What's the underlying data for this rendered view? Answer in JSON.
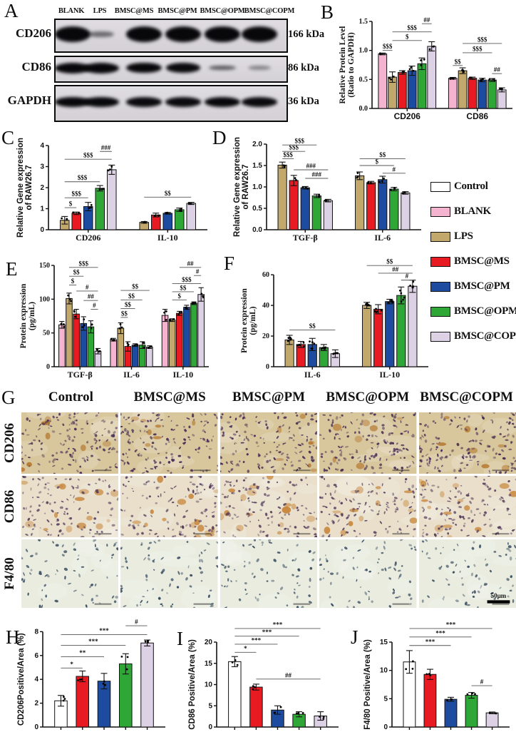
{
  "palette": {
    "Control": "#ffffff",
    "BLANK": "#f4b3ce",
    "LPS": "#c2a86a",
    "BMSC@MS": "#e81b22",
    "BMSC@PM": "#1d4b9f",
    "BMSC@OPM": "#2ea737",
    "BMSC@COPM": "#ddd1e5"
  },
  "blot": {
    "panel": "A",
    "lanes": [
      "BLANK",
      "LPS",
      "BMSC@MS",
      "BMSC@PM",
      "BMSC@OPM",
      "BMSC@COPM"
    ],
    "rows": [
      {
        "label": "CD206",
        "kda": "166 kDa",
        "bands": [
          1,
          0.35,
          1,
          1,
          0.97,
          1.02
        ]
      },
      {
        "label": "CD86",
        "kda": "86 kDa",
        "bands": [
          1,
          1,
          0.97,
          0.9,
          0.45,
          0.22
        ]
      },
      {
        "label": "GAPDH",
        "kda": "36 kDa",
        "bands": [
          0.95,
          0.93,
          0.9,
          0.9,
          0.93,
          0.9
        ]
      }
    ]
  },
  "legend": {
    "items": [
      "Control",
      "BLANK",
      "LPS",
      "BMSC@MS",
      "BMSC@PM",
      "BMSC@OPM",
      "BMSC@COPM"
    ]
  },
  "histology": {
    "panel": "G",
    "columns": [
      "Control",
      "BMSC@MS",
      "BMSC@PM",
      "BMSC@OPM",
      "BMSC@COPM"
    ],
    "rows": [
      {
        "label": "CD206",
        "bg": "#d8c69c",
        "dot": "#4a3156",
        "accent": "#b06d20",
        "dots": 150,
        "accents": 7
      },
      {
        "label": "CD86",
        "bg": "#e9dfca",
        "dot": "#584060",
        "accent": "#c0731d",
        "dots": 115,
        "accents": 15
      },
      {
        "label": "F4/80",
        "bg": "#e9ecdf",
        "dot": "#3d5064",
        "accent": "#9fb4be",
        "dots": 70,
        "accents": 0
      }
    ],
    "scale_label": "50µm"
  },
  "chart_data": [
    {
      "panel": "B",
      "type": "bar",
      "ylabel": [
        "Relative Protein Level",
        "(Ratio to GAPDH)"
      ],
      "ylim": [
        0,
        1.5
      ],
      "yticks": [
        "0.0",
        "0.5",
        "1.0",
        "1.5"
      ],
      "categories": [
        "CD206",
        "CD86"
      ],
      "series": [
        "BLANK",
        "LPS",
        "BMSC@MS",
        "BMSC@PM",
        "BMSC@OPM",
        "BMSC@COPM"
      ],
      "values": [
        [
          0.94,
          0.54,
          0.62,
          0.65,
          0.77,
          1.07
        ],
        [
          0.52,
          0.65,
          0.52,
          0.49,
          0.49,
          0.32
        ]
      ],
      "errors": [
        [
          0.015,
          0.09,
          0.03,
          0.08,
          0.1,
          0.08
        ],
        [
          0.015,
          0.05,
          0.02,
          0.03,
          0.025,
          0.035
        ]
      ],
      "sig": [
        {
          "t": "$$$",
          "g": 0,
          "a": 0,
          "b": 1,
          "y": 1.0
        },
        {
          "t": "$",
          "g": 0,
          "a": 1,
          "b": 4,
          "y": 1.17
        },
        {
          "t": "$$$",
          "g": 0,
          "a": 1,
          "b": 5,
          "y": 1.32
        },
        {
          "t": "##",
          "g": 0,
          "a": 4,
          "b": 5,
          "y": 1.46
        },
        {
          "t": "$$",
          "g": 1,
          "a": 0,
          "b": 1,
          "y": 0.74
        },
        {
          "t": "$$$",
          "g": 1,
          "a": 1,
          "b": 4,
          "y": 0.96
        },
        {
          "t": "$$$",
          "g": 1,
          "a": 1,
          "b": 5,
          "y": 1.12
        },
        {
          "t": "##",
          "g": 1,
          "a": 4,
          "b": 5,
          "y": 0.6
        }
      ]
    },
    {
      "panel": "C",
      "type": "bar",
      "ylabel": [
        "Relative Gene expression",
        "of RAW26.7"
      ],
      "ylim": [
        0,
        4
      ],
      "yticks": [
        "0",
        "1",
        "2",
        "3",
        "4"
      ],
      "categories": [
        "CD206",
        "IL-10"
      ],
      "series": [
        "LPS",
        "BMSC@MS",
        "BMSC@PM",
        "BMSC@OPM",
        "BMSC@COPM"
      ],
      "values": [
        [
          0.45,
          0.78,
          1.1,
          1.97,
          2.85
        ],
        [
          0.35,
          0.7,
          0.78,
          0.95,
          1.25
        ]
      ],
      "errors": [
        [
          0.18,
          0.06,
          0.2,
          0.13,
          0.22
        ],
        [
          0.04,
          0.09,
          0.04,
          0.08,
          0.05
        ]
      ],
      "sig": [
        {
          "t": "$",
          "g": 0,
          "a": 0,
          "b": 1,
          "y": 1.05
        },
        {
          "t": "$$$",
          "g": 0,
          "a": 0,
          "b": 2,
          "y": 1.52
        },
        {
          "t": "$$$",
          "g": 0,
          "a": 0,
          "b": 3,
          "y": 2.28
        },
        {
          "t": "$$$",
          "g": 0,
          "a": 0,
          "b": 4,
          "y": 3.35
        },
        {
          "t": "###",
          "g": 0,
          "a": 3,
          "b": 4,
          "y": 3.72
        },
        {
          "t": "$$",
          "g": 1,
          "a": 0,
          "b": 4,
          "y": 1.55
        }
      ]
    },
    {
      "panel": "D",
      "type": "bar",
      "ylabel": [
        "Relative Gene expression",
        "of RAW26.7"
      ],
      "ylim": [
        0,
        2
      ],
      "yticks": [
        "0.0",
        "0.5",
        "1.0",
        "1.5",
        "2.0"
      ],
      "categories": [
        "TGF-β",
        "IL-6"
      ],
      "series": [
        "LPS",
        "BMSC@MS",
        "BMSC@PM",
        "BMSC@OPM",
        "BMSC@COPM"
      ],
      "values": [
        [
          1.51,
          1.15,
          0.98,
          0.79,
          0.68
        ],
        [
          1.26,
          1.1,
          1.17,
          0.95,
          0.86
        ]
      ],
      "errors": [
        [
          0.07,
          0.12,
          0.03,
          0.04,
          0.03
        ],
        [
          0.09,
          0.03,
          0.08,
          0.04,
          0.03
        ]
      ],
      "sig": [
        {
          "t": "$$$",
          "g": 0,
          "a": 0,
          "b": 1,
          "y": 1.66
        },
        {
          "t": "$$$",
          "g": 0,
          "a": 0,
          "b": 2,
          "y": 1.83
        },
        {
          "t": "$$$",
          "g": 0,
          "a": 0,
          "b": 3,
          "y": 1.98
        },
        {
          "t": "###",
          "g": 0,
          "a": 1,
          "b": 4,
          "y": 1.4
        },
        {
          "t": "###",
          "g": 0,
          "a": 2,
          "b": 4,
          "y": 1.2
        },
        {
          "t": "$",
          "g": 1,
          "a": 0,
          "b": 3,
          "y": 1.5
        },
        {
          "t": "$$",
          "g": 1,
          "a": 0,
          "b": 4,
          "y": 1.66
        },
        {
          "t": "#",
          "g": 1,
          "a": 2,
          "b": 4,
          "y": 1.32
        }
      ]
    },
    {
      "panel": "E",
      "type": "bar",
      "ylabel": [
        "Protein expression",
        "(pg/mL)"
      ],
      "ylim": [
        0,
        150
      ],
      "yticks": [
        "0",
        "50",
        "100",
        "150"
      ],
      "categories": [
        "TGF-β",
        "IL-6",
        "IL-10"
      ],
      "series": [
        "BLANK",
        "LPS",
        "BMSC@MS",
        "BMSC@PM",
        "BMSC@OPM",
        "BMSC@COPM"
      ],
      "values": [
        [
          62,
          101,
          78,
          64,
          59,
          23
        ],
        [
          40,
          57,
          30,
          32,
          32,
          29
        ],
        [
          76,
          69,
          79,
          88,
          94,
          107
        ]
      ],
      "errors": [
        [
          5,
          8,
          7,
          10,
          9,
          4
        ],
        [
          2,
          8,
          7,
          2,
          5,
          2
        ],
        [
          9,
          2,
          3,
          3,
          2,
          10
        ]
      ],
      "sig": [
        {
          "t": "$",
          "g": 0,
          "a": 1,
          "b": 2,
          "y": 121
        },
        {
          "t": "$$",
          "g": 0,
          "a": 1,
          "b": 3,
          "y": 134
        },
        {
          "t": "$$$",
          "g": 0,
          "a": 1,
          "b": 5,
          "y": 147
        },
        {
          "t": "#",
          "g": 0,
          "a": 2,
          "b": 5,
          "y": 112
        },
        {
          "t": "##",
          "g": 0,
          "a": 3,
          "b": 5,
          "y": 98
        },
        {
          "t": "#",
          "g": 0,
          "a": 4,
          "b": 5,
          "y": 85
        },
        {
          "t": "$$",
          "g": 1,
          "a": 1,
          "b": 2,
          "y": 73
        },
        {
          "t": "$$",
          "g": 1,
          "a": 1,
          "b": 3,
          "y": 86
        },
        {
          "t": "$$",
          "g": 1,
          "a": 1,
          "b": 4,
          "y": 99
        },
        {
          "t": "$$",
          "g": 1,
          "a": 1,
          "b": 5,
          "y": 113
        },
        {
          "t": "$",
          "g": 2,
          "a": 1,
          "b": 3,
          "y": 99
        },
        {
          "t": "$$",
          "g": 2,
          "a": 1,
          "b": 4,
          "y": 111
        },
        {
          "t": "$$$",
          "g": 2,
          "a": 1,
          "b": 5,
          "y": 123
        },
        {
          "t": "#",
          "g": 2,
          "a": 4,
          "b": 5,
          "y": 135
        },
        {
          "t": "##",
          "g": 2,
          "a": 2,
          "b": 5,
          "y": 147
        }
      ]
    },
    {
      "panel": "F",
      "type": "bar",
      "ylabel": [
        "Protein expression",
        "(pg/mL)"
      ],
      "ylim": [
        0,
        60
      ],
      "yticks": [
        "0",
        "20",
        "40",
        "60"
      ],
      "categories": [
        "IL-6",
        "IL-10"
      ],
      "series": [
        "LPS",
        "BMSC@MS",
        "BMSC@PM",
        "BMSC@OPM",
        "BMSC@COPM"
      ],
      "values": [
        [
          17.5,
          14.5,
          14.5,
          12.5,
          8.5
        ],
        [
          40,
          37.5,
          42.5,
          46.5,
          52.5
        ]
      ],
      "errors": [
        [
          3,
          2,
          4,
          2,
          2.5
        ],
        [
          2,
          3,
          1.5,
          5.5,
          4
        ]
      ],
      "sig": [
        {
          "t": "$$",
          "g": 0,
          "a": 0,
          "b": 4,
          "y": 24
        },
        {
          "t": "$$",
          "g": 1,
          "a": 0,
          "b": 4,
          "y": 66
        },
        {
          "t": "##",
          "g": 1,
          "a": 1,
          "b": 4,
          "y": 61
        },
        {
          "t": "#",
          "g": 1,
          "a": 3,
          "b": 4,
          "y": 56.5
        }
      ]
    },
    {
      "panel": "H",
      "type": "bar",
      "ylabel": [
        "CD206Positive/Area (%)"
      ],
      "ylim": [
        0,
        8
      ],
      "yticks": [
        "0",
        "2",
        "4",
        "6",
        "8"
      ],
      "categories": [],
      "series": [
        "Control",
        "BMSC@MS",
        "BMSC@PM",
        "BMSC@OPM",
        "BMSC@COPM"
      ],
      "values": [
        [
          2.2,
          4.25,
          3.85,
          5.3,
          7.05
        ]
      ],
      "errors": [
        [
          0.45,
          0.45,
          0.65,
          0.85,
          0.25
        ]
      ],
      "sig": [
        {
          "t": "*",
          "g": 0,
          "a": 0,
          "b": 1,
          "y": 4.95
        },
        {
          "t": "**",
          "g": 0,
          "a": 0,
          "b": 2,
          "y": 5.9
        },
        {
          "t": "***",
          "g": 0,
          "a": 0,
          "b": 3,
          "y": 6.85
        },
        {
          "t": "***",
          "g": 0,
          "a": 0,
          "b": 4,
          "y": 7.75
        },
        {
          "t": "#",
          "g": 0,
          "a": 3,
          "b": 4,
          "y": 8.5
        }
      ]
    },
    {
      "panel": "I",
      "type": "bar",
      "ylabel": [
        "CD86 Positive/Area (%)"
      ],
      "ylim": [
        0,
        20
      ],
      "yticks": [
        "0",
        "5",
        "10",
        "15",
        "20"
      ],
      "categories": [],
      "series": [
        "Control",
        "BMSC@MS",
        "BMSC@PM",
        "BMSC@OPM",
        "BMSC@COPM"
      ],
      "values": [
        [
          15.4,
          9.4,
          4.0,
          3.0,
          2.6
        ]
      ],
      "errors": [
        [
          1.2,
          0.7,
          1.0,
          0.6,
          1.0
        ]
      ],
      "sig": [
        {
          "t": "*",
          "g": 0,
          "a": 0,
          "b": 1,
          "y": 17.6
        },
        {
          "t": "***",
          "g": 0,
          "a": 0,
          "b": 2,
          "y": 19.5
        },
        {
          "t": "***",
          "g": 0,
          "a": 0,
          "b": 3,
          "y": 21.4
        },
        {
          "t": "***",
          "g": 0,
          "a": 0,
          "b": 4,
          "y": 23.2
        },
        {
          "t": "##",
          "g": 0,
          "a": 1,
          "b": 4,
          "y": 11.3
        }
      ]
    },
    {
      "panel": "J",
      "type": "bar",
      "ylabel": [
        "F4/80 Positive/Area (%)"
      ],
      "ylim": [
        0,
        15
      ],
      "yticks": [
        "0",
        "5",
        "10",
        "15"
      ],
      "categories": [],
      "series": [
        "Control",
        "BMSC@MS",
        "BMSC@PM",
        "BMSC@OPM",
        "BMSC@COPM"
      ],
      "values": [
        [
          11.5,
          9.3,
          4.9,
          5.6,
          2.5
        ]
      ],
      "errors": [
        [
          2.0,
          0.9,
          0.35,
          0.5,
          0.15
        ]
      ],
      "sig": [
        {
          "t": "***",
          "g": 0,
          "a": 0,
          "b": 2,
          "y": 14.4
        },
        {
          "t": "***",
          "g": 0,
          "a": 0,
          "b": 3,
          "y": 15.9
        },
        {
          "t": "***",
          "g": 0,
          "a": 0,
          "b": 4,
          "y": 17.4
        },
        {
          "t": "#",
          "g": 0,
          "a": 3,
          "b": 4,
          "y": 7.3
        }
      ]
    }
  ]
}
